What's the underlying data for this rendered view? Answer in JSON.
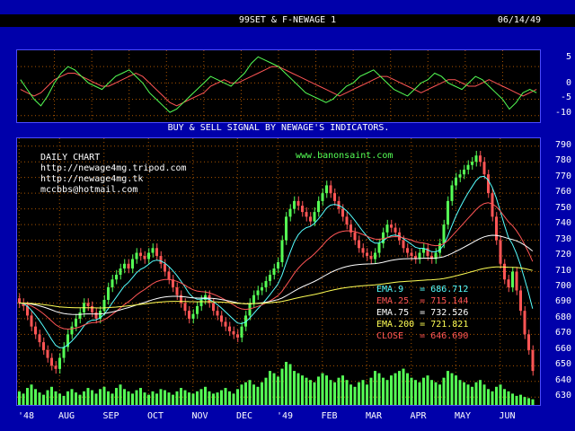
{
  "header": {
    "title": "99SET & F-NEWAGE 1",
    "date": "06/14/49"
  },
  "caption": "BUY & SELL SIGNAL BY NEWAGE'S INDICATORS.",
  "info": {
    "line1": "DAILY CHART",
    "line2": "http://newage4mg.tripod.com",
    "line3": "http://newage4mg.tk",
    "line4": "mccbbs@hotmail.com",
    "website": "www.banonsaint.com"
  },
  "legend": [
    {
      "label": "EMA.9",
      "value": "686.712",
      "color": "#55ffff"
    },
    {
      "label": "EMA.25",
      "value": "715.144",
      "color": "#ff5555"
    },
    {
      "label": "EMA.75",
      "value": "732.526",
      "color": "#ffffff"
    },
    {
      "label": "EMA.200",
      "value": "721.821",
      "color": "#ffff55"
    },
    {
      "label": "CLOSE",
      "value": "646.690",
      "color": "#ff5555"
    }
  ],
  "colors": {
    "up": "#55ff55",
    "down": "#ff5555",
    "grid": "#aa5500",
    "volume": "#55ff55"
  },
  "oscillator_axis": [
    "5",
    "0",
    "-5",
    "-10"
  ],
  "chart_data": [
    {
      "type": "line",
      "title": "",
      "ylim": [
        -12,
        10
      ],
      "yticks": [
        5,
        0,
        -5,
        -10
      ],
      "series": [
        {
          "color": "#ff5555",
          "values": [
            -2,
            -3,
            -4,
            -3,
            -1,
            1,
            2,
            3,
            3,
            2,
            1,
            0,
            -1,
            -1,
            0,
            1,
            2,
            3,
            2,
            0,
            -2,
            -4,
            -6,
            -7,
            -6,
            -5,
            -4,
            -3,
            -1,
            0,
            1,
            0,
            0,
            1,
            2,
            3,
            4,
            5,
            5,
            4,
            3,
            2,
            1,
            0,
            -1,
            -2,
            -3,
            -4,
            -3,
            -2,
            -1,
            0,
            1,
            2,
            2,
            1,
            0,
            -1,
            -2,
            -3,
            -2,
            -1,
            0,
            1,
            1,
            0,
            -1,
            -1,
            0,
            1,
            0,
            -1,
            -2,
            -3,
            -4,
            -3,
            -2
          ]
        },
        {
          "color": "#55ff55",
          "values": [
            1,
            -2,
            -5,
            -7,
            -4,
            0,
            3,
            5,
            4,
            2,
            0,
            -1,
            -2,
            0,
            2,
            3,
            4,
            2,
            0,
            -3,
            -5,
            -7,
            -9,
            -8,
            -6,
            -4,
            -2,
            0,
            2,
            1,
            0,
            -1,
            1,
            3,
            6,
            8,
            7,
            6,
            5,
            3,
            1,
            -1,
            -3,
            -4,
            -5,
            -6,
            -5,
            -3,
            -1,
            0,
            2,
            3,
            4,
            2,
            0,
            -2,
            -3,
            -4,
            -2,
            0,
            1,
            3,
            2,
            0,
            -1,
            -2,
            0,
            2,
            1,
            -1,
            -3,
            -5,
            -8,
            -6,
            -3,
            -2,
            -3
          ]
        }
      ]
    },
    {
      "type": "candlestick",
      "title": "",
      "ylim": [
        625,
        795
      ],
      "yticks": [
        790,
        780,
        770,
        760,
        750,
        740,
        730,
        720,
        710,
        700,
        690,
        680,
        670,
        660,
        650,
        640,
        630
      ],
      "x_tick_labels": [
        "'48",
        "AUG",
        "SEP",
        "OCT",
        "NOV",
        "DEC",
        "'49",
        "FEB",
        "MAR",
        "APR",
        "MAY",
        "JUN"
      ],
      "close": [
        690,
        688,
        682,
        675,
        670,
        665,
        660,
        655,
        650,
        648,
        655,
        662,
        670,
        675,
        680,
        684,
        690,
        688,
        684,
        680,
        685,
        692,
        700,
        705,
        708,
        712,
        715,
        712,
        718,
        722,
        720,
        718,
        722,
        725,
        720,
        715,
        710,
        705,
        700,
        695,
        690,
        685,
        680,
        683,
        688,
        692,
        695,
        690,
        685,
        682,
        678,
        675,
        672,
        670,
        668,
        675,
        682,
        690,
        695,
        698,
        700,
        704,
        708,
        712,
        716,
        730,
        745,
        750,
        755,
        752,
        748,
        745,
        742,
        748,
        755,
        760,
        765,
        760,
        755,
        750,
        745,
        740,
        735,
        730,
        725,
        722,
        720,
        718,
        722,
        728,
        735,
        740,
        738,
        735,
        730,
        725,
        722,
        720,
        718,
        722,
        725,
        720,
        718,
        722,
        728,
        740,
        755,
        765,
        770,
        772,
        775,
        778,
        780,
        784,
        780,
        772,
        760,
        745,
        730,
        715,
        705,
        700,
        710,
        698,
        685,
        670,
        660,
        646.69
      ],
      "volume": [
        12,
        10,
        15,
        18,
        14,
        11,
        9,
        13,
        16,
        12,
        10,
        8,
        12,
        14,
        11,
        9,
        12,
        15,
        13,
        10,
        14,
        16,
        12,
        10,
        15,
        18,
        14,
        12,
        10,
        13,
        15,
        11,
        9,
        12,
        10,
        14,
        13,
        11,
        9,
        12,
        15,
        13,
        11,
        10,
        12,
        14,
        16,
        12,
        10,
        11,
        13,
        15,
        12,
        10,
        14,
        18,
        20,
        22,
        18,
        16,
        20,
        24,
        30,
        28,
        25,
        32,
        38,
        36,
        30,
        28,
        26,
        24,
        22,
        20,
        25,
        28,
        26,
        22,
        20,
        24,
        26,
        22,
        18,
        16,
        20,
        22,
        18,
        24,
        30,
        28,
        24,
        22,
        26,
        28,
        30,
        32,
        28,
        24,
        22,
        20,
        24,
        26,
        22,
        20,
        18,
        24,
        30,
        28,
        26,
        22,
        20,
        18,
        16,
        20,
        22,
        18,
        14,
        12,
        16,
        18,
        14,
        12,
        10,
        8,
        9,
        7,
        6,
        5
      ]
    }
  ]
}
